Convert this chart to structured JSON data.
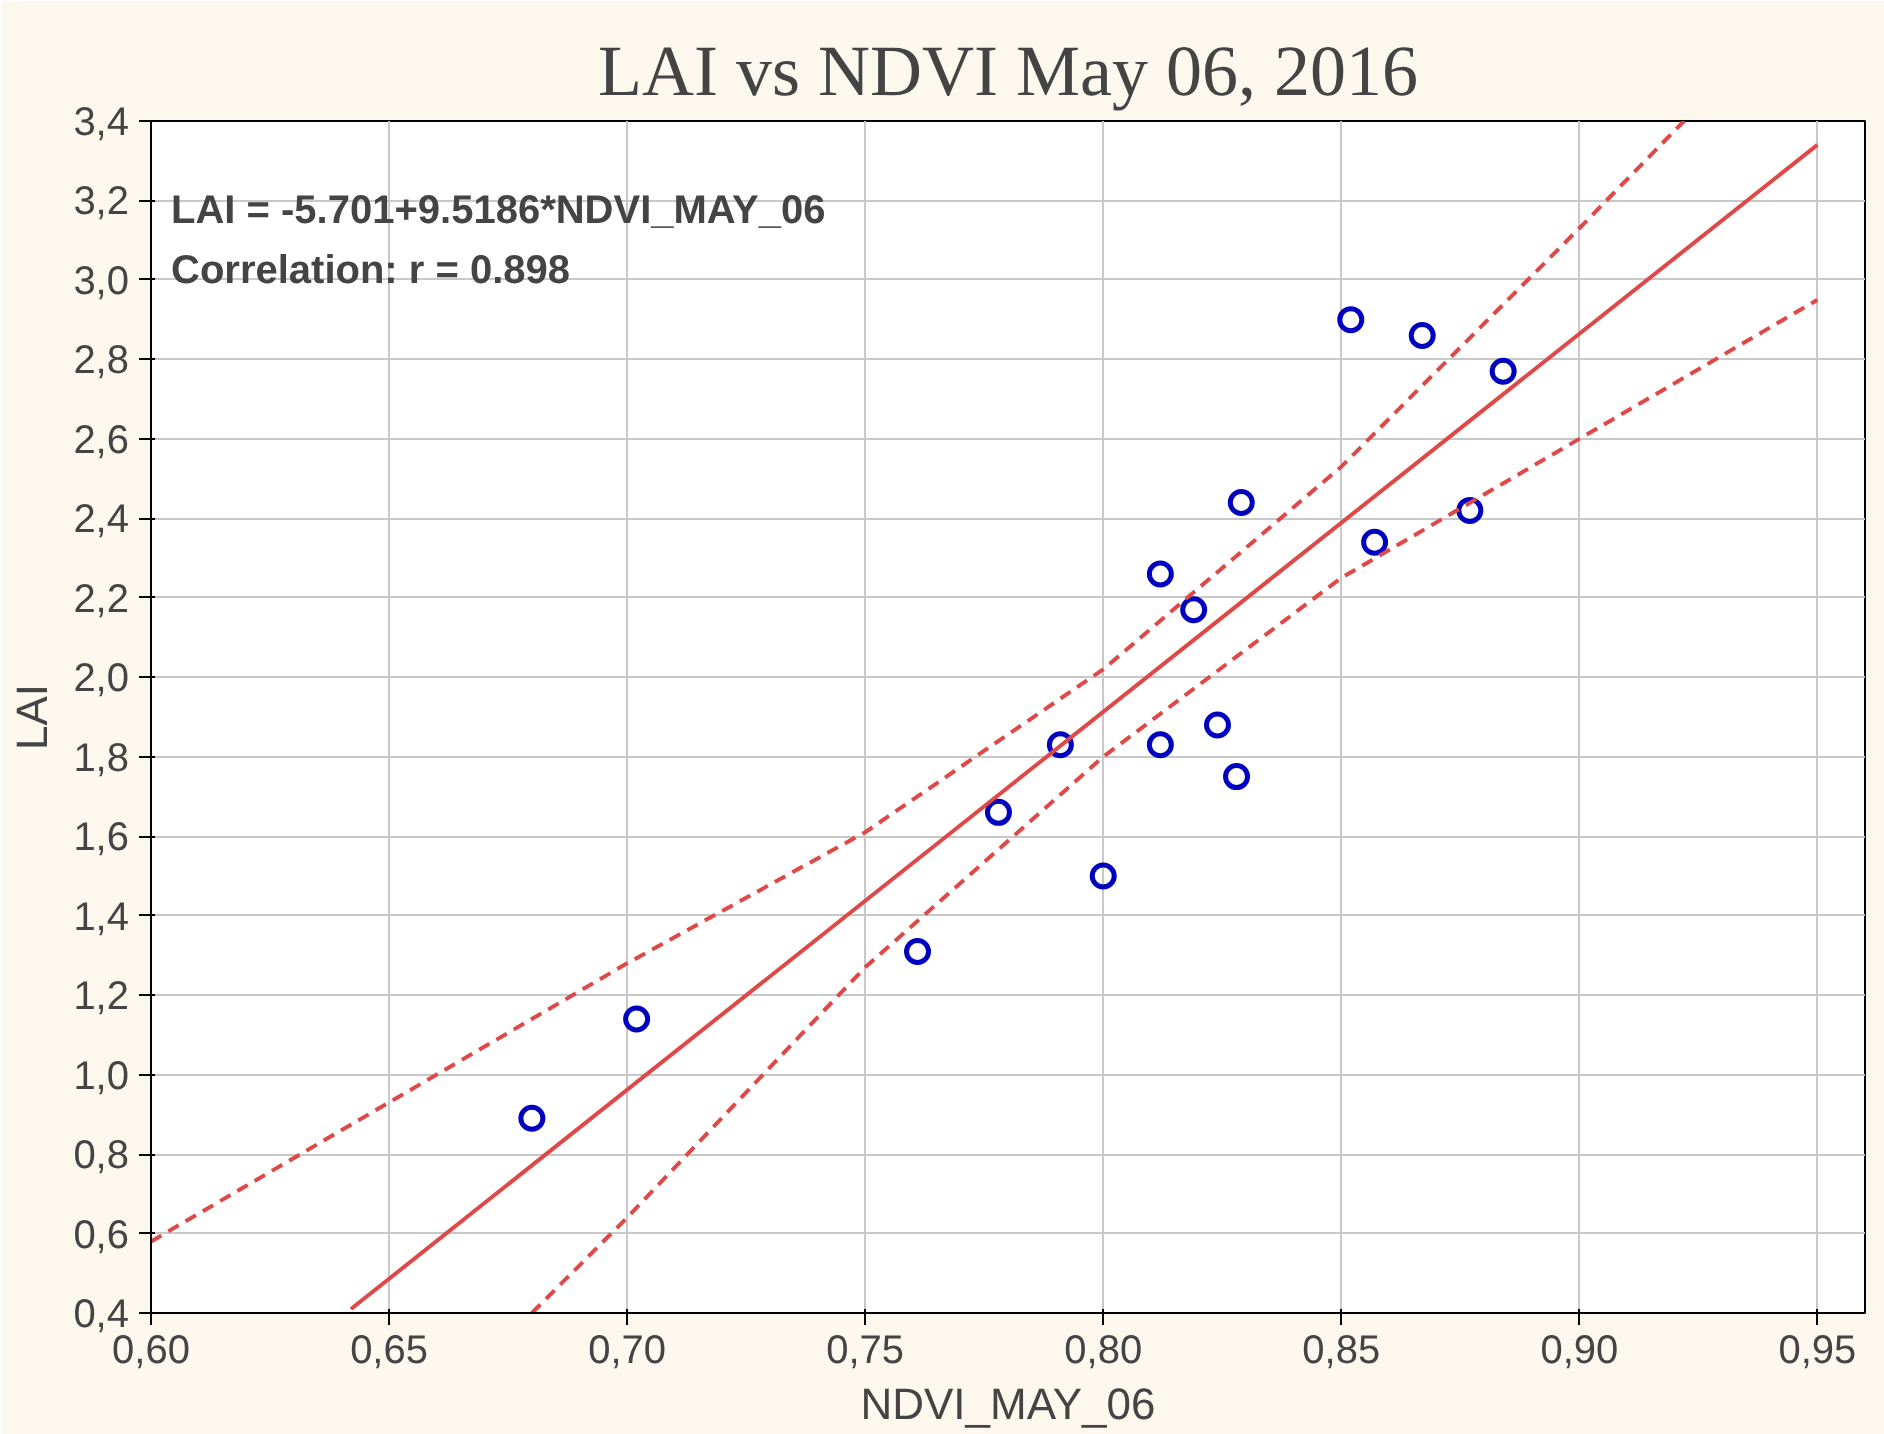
{
  "chart_data": {
    "type": "scatter",
    "title": "LAI vs NDVI May 06, 2016",
    "xlabel": "NDVI_MAY_06",
    "ylabel": "LAI",
    "annotations": [
      "LAI = -5.701+9.5186*NDVI_MAY_06",
      "Correlation: r = 0.898"
    ],
    "xlim": [
      0.6,
      0.96
    ],
    "ylim": [
      0.4,
      3.4
    ],
    "xticks": [
      {
        "value": 0.6,
        "label": "0,60"
      },
      {
        "value": 0.65,
        "label": "0,65"
      },
      {
        "value": 0.7,
        "label": "0,70"
      },
      {
        "value": 0.75,
        "label": "0,75"
      },
      {
        "value": 0.8,
        "label": "0,80"
      },
      {
        "value": 0.85,
        "label": "0,85"
      },
      {
        "value": 0.9,
        "label": "0,90"
      },
      {
        "value": 0.95,
        "label": "0,95"
      }
    ],
    "yticks": [
      {
        "value": 0.4,
        "label": "0,4"
      },
      {
        "value": 0.6,
        "label": "0,6"
      },
      {
        "value": 0.8,
        "label": "0,8"
      },
      {
        "value": 1.0,
        "label": "1,0"
      },
      {
        "value": 1.2,
        "label": "1,2"
      },
      {
        "value": 1.4,
        "label": "1,4"
      },
      {
        "value": 1.6,
        "label": "1,6"
      },
      {
        "value": 1.8,
        "label": "1,8"
      },
      {
        "value": 2.0,
        "label": "2,0"
      },
      {
        "value": 2.2,
        "label": "2,2"
      },
      {
        "value": 2.4,
        "label": "2,4"
      },
      {
        "value": 2.6,
        "label": "2,6"
      },
      {
        "value": 2.8,
        "label": "2,8"
      },
      {
        "value": 3.0,
        "label": "3,0"
      },
      {
        "value": 3.2,
        "label": "3,2"
      },
      {
        "value": 3.4,
        "label": "3,4"
      }
    ],
    "grid": true,
    "series": [
      {
        "marker": "circle",
        "color": "#0000c0",
        "x": [
          0.68,
          0.702,
          0.761,
          0.778,
          0.791,
          0.8,
          0.812,
          0.812,
          0.819,
          0.824,
          0.828,
          0.829,
          0.852,
          0.857,
          0.867,
          0.877,
          0.884
        ],
        "values": [
          0.89,
          1.14,
          1.31,
          1.66,
          1.83,
          1.5,
          1.83,
          2.26,
          2.17,
          1.88,
          1.75,
          2.44,
          2.9,
          2.34,
          2.86,
          2.42,
          2.77
        ]
      },
      {
        "type": "line",
        "line_style": "solid",
        "color": "#e04848",
        "x": [
          0.642,
          0.95
        ],
        "values": [
          0.41,
          3.34
        ]
      },
      {
        "type": "line",
        "line_style": "dashed",
        "color": "#e04848",
        "x": [
          0.6,
          0.65,
          0.7,
          0.75,
          0.8,
          0.85,
          0.9,
          0.922
        ],
        "values": [
          0.58,
          0.93,
          1.28,
          1.61,
          2.02,
          2.53,
          3.13,
          3.4
        ]
      },
      {
        "type": "line",
        "line_style": "dashed",
        "color": "#e04848",
        "x": [
          0.68,
          0.7,
          0.75,
          0.8,
          0.85,
          0.9,
          0.95
        ],
        "values": [
          0.4,
          0.64,
          1.27,
          1.8,
          2.25,
          2.6,
          2.95
        ]
      }
    ]
  }
}
